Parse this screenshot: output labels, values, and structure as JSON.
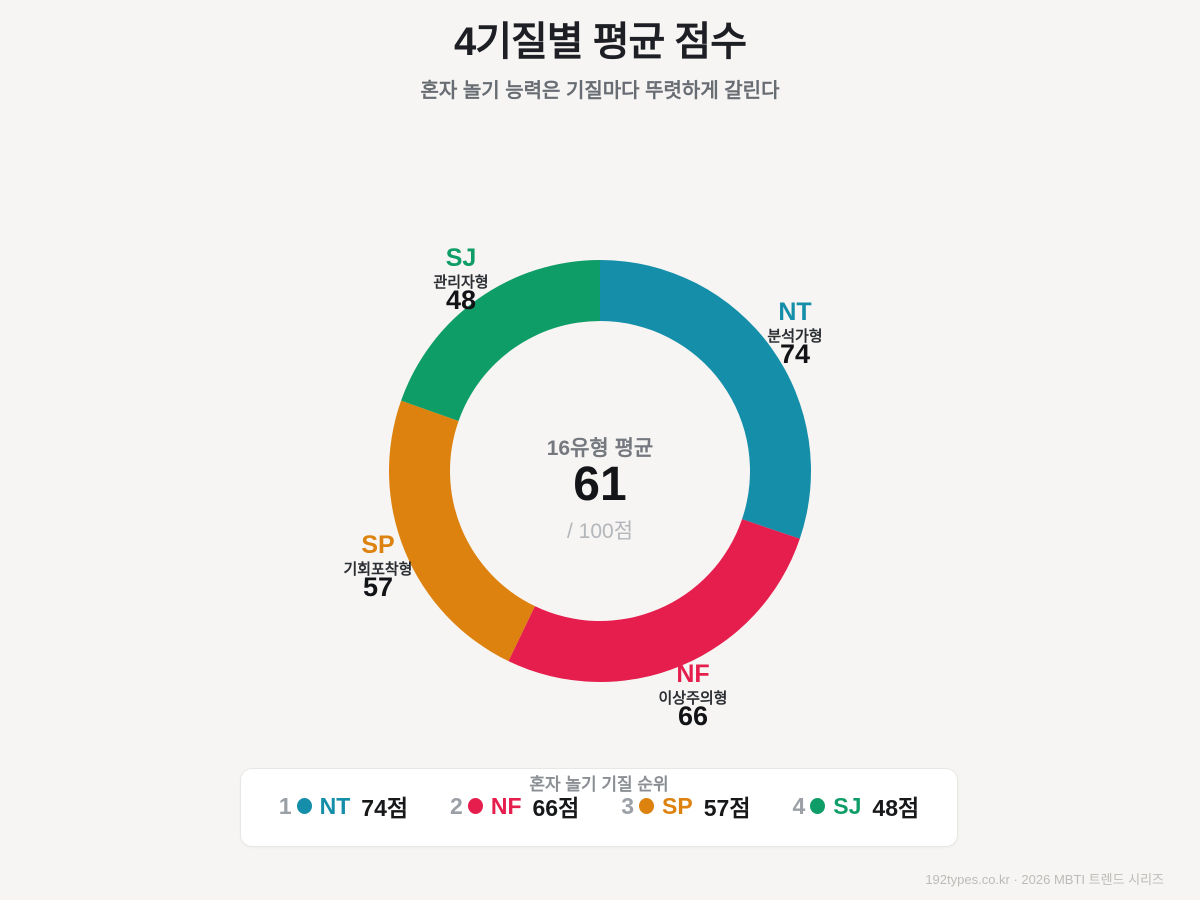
{
  "page": {
    "title": "4기질별 평균 점수",
    "subtitle": "혼자 놀기 능력은 기질마다 뚜렷하게 갈린다",
    "footer": "192types.co.kr · 2026 MBTI 트렌드 시리즈",
    "background_color": "#f6f5f3"
  },
  "chart_data": {
    "type": "pie",
    "variant": "donut",
    "title": "4기질별 평균 점수",
    "start_angle_deg": 0,
    "direction": "clockwise",
    "unit": "점",
    "max_score": 100,
    "segments": [
      {
        "code": "NT",
        "name": "분석가형",
        "value": 74,
        "color": "#148ea9"
      },
      {
        "code": "NF",
        "name": "이상주의형",
        "value": 66,
        "color": "#e61e4d"
      },
      {
        "code": "SP",
        "name": "기회포착형",
        "value": 57,
        "color": "#dd820f"
      },
      {
        "code": "SJ",
        "name": "관리자형",
        "value": 48,
        "color": "#0e9d66"
      }
    ],
    "center": {
      "label": "16유형 평균",
      "value": "61",
      "denominator": "/ 100점"
    }
  },
  "legend": {
    "title": "혼자 놀기 기질 순위",
    "items": [
      {
        "rank": "1",
        "code": "NT",
        "score": "74점",
        "color": "#148ea9"
      },
      {
        "rank": "2",
        "code": "NF",
        "score": "66점",
        "color": "#e61e4d"
      },
      {
        "rank": "3",
        "code": "SP",
        "score": "57점",
        "color": "#dd820f"
      },
      {
        "rank": "4",
        "code": "SJ",
        "score": "48점",
        "color": "#0e9d66"
      }
    ]
  }
}
